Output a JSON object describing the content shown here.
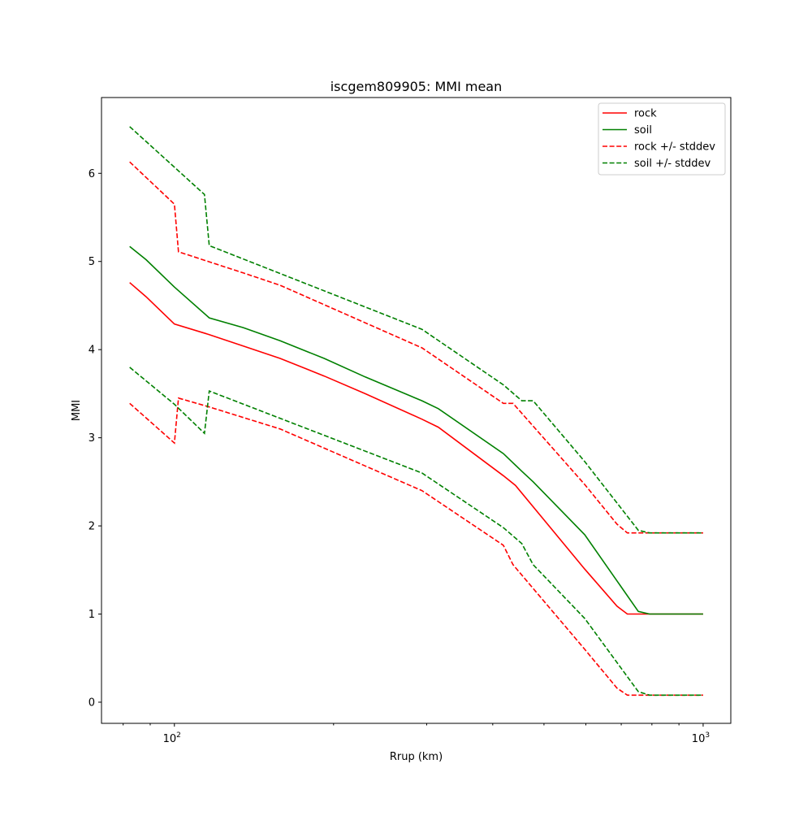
{
  "chart_data": {
    "type": "line",
    "title": "iscgem809905: MMI mean",
    "xlabel": "Rrup (km)",
    "ylabel": "MMI",
    "xscale": "log",
    "xlim": [
      72.8,
      1128
    ],
    "ylim": [
      -0.24,
      6.86
    ],
    "xticks": [
      {
        "value": 100,
        "base": "10",
        "exp": "2"
      },
      {
        "value": 1000,
        "base": "10",
        "exp": "3"
      }
    ],
    "xminor": [
      80,
      90,
      200,
      300,
      400,
      500,
      600,
      700,
      800,
      900
    ],
    "yticks": [
      0,
      1,
      2,
      3,
      4,
      5,
      6
    ],
    "grid": false,
    "legend_position": "top-right",
    "series": [
      {
        "name": "rock",
        "color": "#ff0000",
        "style": "solid",
        "x": [
          82.3,
          88.4,
          100,
          116.4,
          135,
          158.5,
          192,
          229.6,
          294,
          315.6,
          419,
          441.6,
          597,
          687,
          719,
          1000
        ],
        "y": [
          4.76,
          4.6,
          4.29,
          4.17,
          4.04,
          3.9,
          3.7,
          3.5,
          3.21,
          3.12,
          2.57,
          2.46,
          1.51,
          1.09,
          1.0,
          1.0
        ]
      },
      {
        "name": "soil",
        "color": "#008000",
        "style": "solid",
        "x": [
          82.3,
          88.4,
          100,
          116.4,
          135,
          158.5,
          192,
          229.6,
          294,
          315.6,
          419,
          454,
          477,
          597,
          754,
          792,
          1000
        ],
        "y": [
          5.17,
          5.02,
          4.71,
          4.36,
          4.25,
          4.1,
          3.9,
          3.69,
          3.42,
          3.33,
          2.82,
          2.62,
          2.5,
          1.9,
          1.03,
          1.0,
          1.0
        ]
      },
      {
        "name": "rock +/- stddev",
        "color": "#ff0000",
        "style": "dashed",
        "x": [
          82.3,
          100,
          101.8,
          135,
          158.5,
          294,
          419,
          437,
          597,
          687,
          719,
          1000
        ],
        "y": [
          6.13,
          5.65,
          5.11,
          4.87,
          4.73,
          4.02,
          3.39,
          3.39,
          2.47,
          2.02,
          1.92,
          1.92
        ]
      },
      {
        "name": "rock +/- stddev (lower)",
        "color": "#ff0000",
        "style": "dashed",
        "x": [
          82.3,
          100,
          101.8,
          116.4,
          158.5,
          294,
          419,
          437,
          597,
          687,
          719,
          1000
        ],
        "y": [
          3.39,
          2.94,
          3.45,
          3.35,
          3.1,
          2.4,
          1.78,
          1.56,
          0.6,
          0.16,
          0.08,
          0.08
        ]
      },
      {
        "name": "soil +/- stddev",
        "color": "#008000",
        "style": "dashed",
        "x": [
          82.3,
          100,
          114,
          116.4,
          294,
          419,
          454,
          477,
          597,
          754,
          792,
          1000
        ],
        "y": [
          6.53,
          6.07,
          5.76,
          5.18,
          4.23,
          3.6,
          3.42,
          3.42,
          2.73,
          1.95,
          1.92,
          1.92
        ]
      },
      {
        "name": "soil +/- stddev (lower)",
        "color": "#008000",
        "style": "dashed",
        "x": [
          82.3,
          100,
          114,
          116.4,
          294,
          419,
          454,
          477,
          597,
          754,
          792,
          1000
        ],
        "y": [
          3.8,
          3.38,
          3.05,
          3.53,
          2.6,
          1.98,
          1.8,
          1.56,
          0.95,
          0.12,
          0.08,
          0.08
        ]
      }
    ],
    "legend": [
      {
        "label": "rock",
        "color": "#ff0000",
        "style": "solid"
      },
      {
        "label": "soil",
        "color": "#008000",
        "style": "solid"
      },
      {
        "label": "rock +/- stddev",
        "color": "#ff0000",
        "style": "dashed"
      },
      {
        "label": "soil +/- stddev",
        "color": "#008000",
        "style": "dashed"
      }
    ]
  }
}
